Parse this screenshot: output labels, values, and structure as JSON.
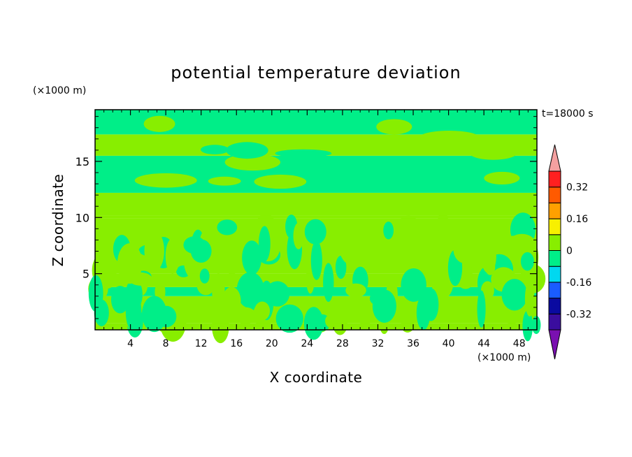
{
  "chart_data": {
    "type": "heatmap",
    "title": "potential temperature deviation",
    "time_label": "t=18000 s",
    "xlabel": "X coordinate",
    "ylabel": "Z coordinate",
    "x_unit": "(×1000 m)",
    "y_unit": "(×1000 m)",
    "xlim": [
      0,
      50
    ],
    "ylim": [
      0,
      19.6
    ],
    "x_ticks": [
      4,
      8,
      12,
      16,
      20,
      24,
      28,
      32,
      36,
      40,
      44,
      48
    ],
    "y_ticks": [
      5,
      10,
      15
    ],
    "colorbar": {
      "levels": [
        -0.4,
        -0.32,
        -0.24,
        -0.16,
        -0.08,
        0,
        0.08,
        0.16,
        0.24,
        0.32,
        0.4
      ],
      "labels": [
        "0.32",
        "0.16",
        "0",
        "-0.16",
        "-0.32"
      ],
      "label_values": [
        0.32,
        0.16,
        0,
        -0.16,
        -0.32
      ],
      "colors": [
        "#3a0d9e",
        "#0a0aa0",
        "#1a5cff",
        "#00d8f0",
        "#00ee88",
        "#88ee00",
        "#f8f000",
        "#ffa000",
        "#ff5a00",
        "#ff2020"
      ],
      "under_color": "#7a10b0",
      "over_color": "#f4a0a0"
    },
    "field": {
      "regions_note": "",
      "z_bands": [
        {
          "z": [
            0,
            0.6
          ],
          "value": 0.04
        },
        {
          "z": [
            0.6,
            3.0
          ],
          "value": 0.04
        },
        {
          "z": [
            3.0,
            3.8
          ],
          "value": -0.04
        },
        {
          "z": [
            3.8,
            5.0
          ],
          "value": 0.04
        },
        {
          "z": [
            5.0,
            9.9
          ],
          "value": 0.04
        },
        {
          "z": [
            9.9,
            10.2
          ],
          "value": 0.04
        },
        {
          "z": [
            10.2,
            12.2
          ],
          "value": 0.04
        },
        {
          "z": [
            12.2,
            15.5
          ],
          "value": -0.04
        },
        {
          "z": [
            15.5,
            17.4
          ],
          "value": 0.04
        },
        {
          "z": [
            17.4,
            19.6
          ],
          "value": -0.04
        }
      ]
    }
  }
}
